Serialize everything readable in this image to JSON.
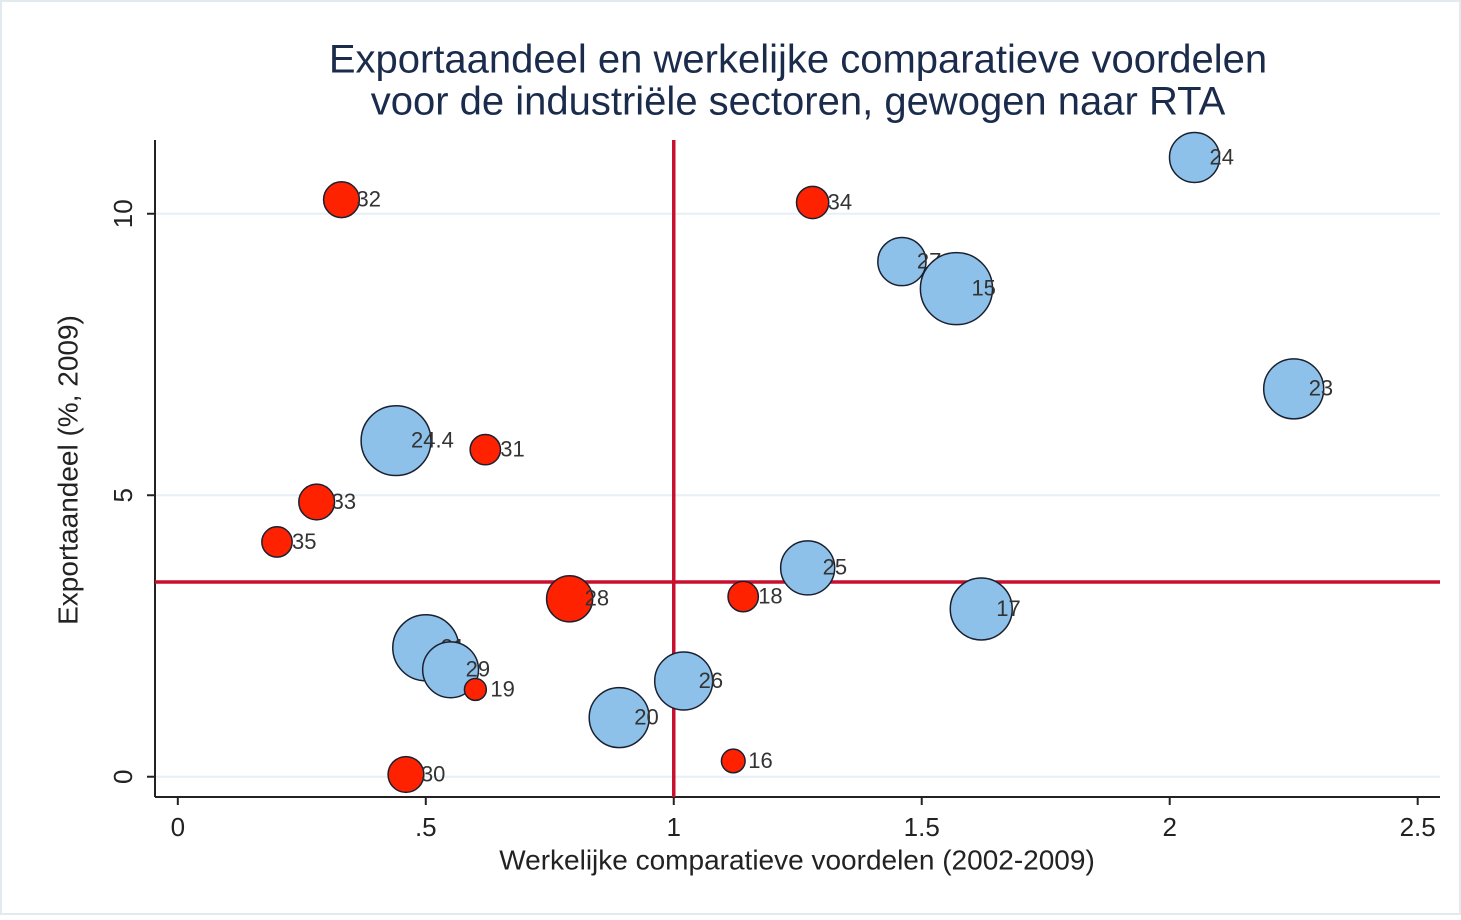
{
  "chart_data": {
    "type": "scatter",
    "title": [
      "Exportaandeel en werkelijke comparatieve voordelen",
      "voor de industriële sectoren, gewogen naar RTA"
    ],
    "x_label": "Werkelijke comparatieve voordelen (2002-2009)",
    "y_label": "Exportaandeel (%, 2009)",
    "xlim": [
      -0.046,
      2.545
    ],
    "ylim": [
      -0.36,
      11.31
    ],
    "xticks": [
      0,
      {
        "value": 0.5,
        "label": ".5"
      },
      1,
      1.5,
      2,
      2.5
    ],
    "yticks": [
      0,
      5,
      10
    ],
    "grid": true,
    "reference_lines": {
      "x": 1,
      "y": 3.46,
      "color": "#c8102e"
    },
    "series": [
      {
        "color": "#8ec1ea",
        "labels": [
          "24",
          "27",
          "15",
          "23",
          "24.4",
          "25",
          "17",
          "21",
          "29",
          "26",
          "20"
        ],
        "x": [
          2.05,
          1.46,
          1.57,
          2.25,
          0.44,
          1.27,
          1.62,
          0.5,
          0.55,
          1.02,
          0.89
        ],
        "values": [
          11.0,
          9.15,
          8.67,
          6.89,
          5.97,
          3.71,
          2.98,
          2.29,
          1.9,
          1.7,
          1.05
        ],
        "sizes": [
          6.25,
          5.8,
          13,
          9,
          12.2,
          7.3,
          9.6,
          10.9,
          7.8,
          8.4,
          9
        ]
      },
      {
        "color": "#ff2200",
        "labels": [
          "32",
          "34",
          "31",
          "33",
          "35",
          "28",
          "18",
          "19",
          "16",
          "30"
        ],
        "x": [
          0.33,
          1.28,
          0.62,
          0.28,
          0.2,
          0.79,
          1.14,
          0.6,
          1.12,
          0.46
        ],
        "values": [
          10.25,
          10.2,
          5.81,
          4.88,
          4.17,
          3.16,
          3.2,
          1.55,
          0.28,
          0.04
        ],
        "sizes": [
          3.2,
          2.6,
          2.3,
          3.2,
          2.3,
          5.3,
          2.3,
          1.2,
          1.4,
          3.2
        ]
      }
    ]
  }
}
